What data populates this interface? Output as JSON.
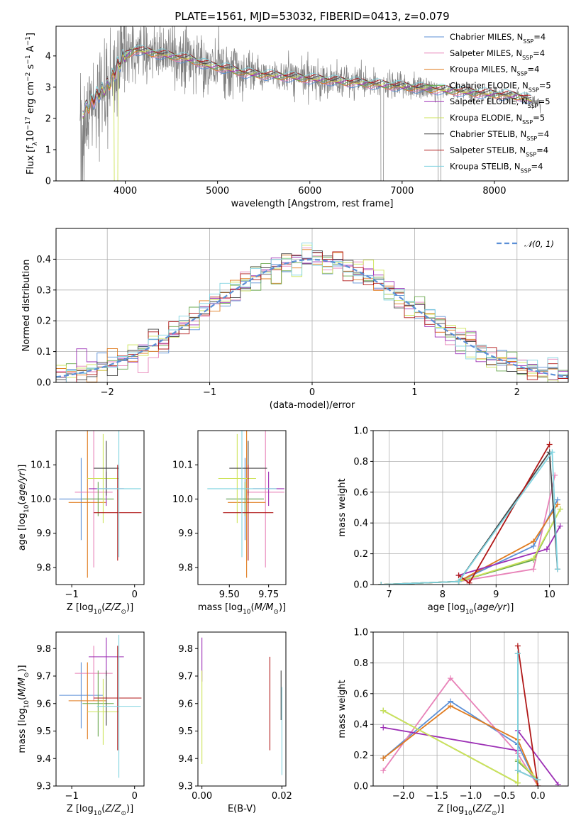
{
  "title": "PLATE=1561, MJD=53032, FIBERID=0413, z=0.079",
  "colors": {
    "Chabrier MILES": "#5b8fd6",
    "Salpeter MILES": "#e882b8",
    "Kroupa MILES": "#e07b1e",
    "Chabrier ELODIE": "#6aa84f",
    "Salpeter ELODIE": "#9c2fb5",
    "Kroupa ELODIE": "#cde35a",
    "Chabrier STELIB": "#444444",
    "Salpeter STELIB": "#b01818",
    "Kroupa STELIB": "#7fd3e0",
    "data": "#808080"
  },
  "chart_data": [
    {
      "id": "spectrum",
      "type": "line",
      "xlabel": "wavelength [Angstrom, rest frame]",
      "ylabel": "Flux [f_λ 10^-17 erg cm^-2 s^-1 A^-1]",
      "xlim": [
        3250,
        8800
      ],
      "ylim": [
        0,
        4.95
      ],
      "xticks": [
        "4000",
        "5000",
        "6000",
        "7000",
        "8000"
      ],
      "yticks": [
        "0",
        "1",
        "2",
        "3",
        "4"
      ],
      "legend": [
        "Chabrier MILES, N_SSP=4",
        "Salpeter MILES, N_SSP=4",
        "Kroupa MILES, N_SSP=4",
        "Chabrier ELODIE, N_SSP=5",
        "Salpeter ELODIE, N_SSP=5",
        "Kroupa ELODIE, N_SSP=5",
        "Chabrier STELIB, N_SSP=4",
        "Salpeter STELIB, N_SSP=4",
        "Kroupa STELIB, N_SSP=4"
      ],
      "legend_position": "right",
      "continuum_x": [
        3540,
        3650,
        3800,
        3900,
        4000,
        4100,
        4300,
        4500,
        4700,
        4900,
        5100,
        5300,
        5500,
        5700,
        5900,
        6100,
        6300,
        6500,
        6700,
        6900,
        7100,
        7300,
        7500,
        7700,
        7900,
        8100,
        8300,
        8500
      ],
      "continuum_y": [
        2.2,
        2.6,
        3.0,
        3.6,
        4.0,
        4.2,
        4.1,
        4.0,
        3.9,
        3.7,
        3.6,
        3.45,
        3.4,
        3.35,
        3.3,
        3.25,
        3.2,
        3.15,
        3.1,
        3.05,
        3.0,
        2.95,
        2.9,
        2.85,
        2.8,
        2.75,
        2.7,
        2.45
      ]
    },
    {
      "id": "residuals",
      "type": "line",
      "xlabel": "(data-model)/error",
      "ylabel": "Normed distribution",
      "xlim": [
        -2.5,
        2.5
      ],
      "ylim": [
        0,
        0.5
      ],
      "xticks": [
        "−2",
        "−1",
        "0",
        "1",
        "2"
      ],
      "yticks": [
        "0.0",
        "0.1",
        "0.2",
        "0.3",
        "0.4"
      ],
      "legend": [
        "𝒩(0, 1)"
      ],
      "legend_position": "top-right",
      "grid": true
    },
    {
      "id": "age_vs_Z",
      "type": "scatter",
      "xlabel": "Z [log10(Z/Z⊙)]",
      "ylabel": "age [log10(age/yr)]",
      "xlim": [
        -1.25,
        0.15
      ],
      "ylim": [
        9.75,
        10.2
      ],
      "xticks": [
        "−1",
        "0"
      ],
      "yticks": [
        "9.8",
        "9.9",
        "10.0",
        "10.1"
      ],
      "points": [
        {
          "model": "Chabrier MILES",
          "x": -0.85,
          "y": 10.0,
          "xerr": 0.35,
          "yerr": 0.12
        },
        {
          "model": "Salpeter MILES",
          "x": -0.65,
          "y": 10.02,
          "xerr": 0.3,
          "yerr": 0.22
        },
        {
          "model": "Kroupa MILES",
          "x": -0.75,
          "y": 9.99,
          "xerr": 0.3,
          "yerr": 0.22
        },
        {
          "model": "Chabrier ELODIE",
          "x": -0.58,
          "y": 10.0,
          "xerr": 0.25,
          "yerr": 0.05
        },
        {
          "model": "Salpeter ELODIE",
          "x": -0.45,
          "y": 10.03,
          "xerr": 0.28,
          "yerr": 0.05
        },
        {
          "model": "Kroupa ELODIE",
          "x": -0.5,
          "y": 10.06,
          "xerr": 0.25,
          "yerr": 0.13
        },
        {
          "model": "Chabrier STELIB",
          "x": -0.45,
          "y": 10.09,
          "xerr": 0.2,
          "yerr": 0.08
        },
        {
          "model": "Salpeter STELIB",
          "x": -0.27,
          "y": 9.96,
          "xerr": 0.38,
          "yerr": 0.14
        },
        {
          "model": "Kroupa STELIB",
          "x": -0.25,
          "y": 10.03,
          "xerr": 0.35,
          "yerr": 0.2
        }
      ]
    },
    {
      "id": "age_vs_mass",
      "type": "scatter",
      "xlabel": "mass [log10(M/M⊙)]",
      "ylabel": "",
      "xlim": [
        9.3,
        9.86
      ],
      "ylim": [
        9.75,
        10.2
      ],
      "xticks": [
        "9.50",
        "9.75"
      ],
      "yticks": [
        "9.8",
        "9.9",
        "10.0",
        "10.1"
      ],
      "points": [
        {
          "model": "Chabrier MILES",
          "x": 9.6,
          "y": 10.0,
          "xerr": 0.12,
          "yerr": 0.12
        },
        {
          "model": "Salpeter MILES",
          "x": 9.73,
          "y": 10.02,
          "xerr": 0.12,
          "yerr": 0.22
        },
        {
          "model": "Kroupa MILES",
          "x": 9.61,
          "y": 9.99,
          "xerr": 0.12,
          "yerr": 0.22
        },
        {
          "model": "Chabrier ELODIE",
          "x": 9.6,
          "y": 10.0,
          "xerr": 0.12,
          "yerr": 0.05
        },
        {
          "model": "Salpeter ELODIE",
          "x": 9.75,
          "y": 10.03,
          "xerr": 0.1,
          "yerr": 0.05
        },
        {
          "model": "Kroupa ELODIE",
          "x": 9.55,
          "y": 10.06,
          "xerr": 0.12,
          "yerr": 0.13
        },
        {
          "model": "Chabrier STELIB",
          "x": 9.62,
          "y": 10.09,
          "xerr": 0.12,
          "yerr": 0.08
        },
        {
          "model": "Salpeter STELIB",
          "x": 9.62,
          "y": 9.96,
          "xerr": 0.16,
          "yerr": 0.14
        },
        {
          "model": "Kroupa STELIB",
          "x": 9.58,
          "y": 10.03,
          "xerr": 0.22,
          "yerr": 0.2
        }
      ]
    },
    {
      "id": "weights_vs_age",
      "type": "line",
      "xlabel": "age [log10(age/yr)]",
      "ylabel": "mass weight",
      "xlim": [
        6.7,
        10.35
      ],
      "ylim": [
        0,
        1.0
      ],
      "xticks": [
        "7",
        "8",
        "9",
        "10"
      ],
      "yticks": [
        "0.0",
        "0.2",
        "0.4",
        "0.6",
        "0.8",
        "1.0"
      ],
      "grid": true,
      "series": [
        {
          "model": "Chabrier MILES",
          "x": [
            6.85,
            8.3,
            9.7,
            10.15
          ],
          "y": [
            0.0,
            0.02,
            0.25,
            0.55
          ]
        },
        {
          "model": "Salpeter MILES",
          "x": [
            6.85,
            8.3,
            9.7,
            10.1
          ],
          "y": [
            0.0,
            0.02,
            0.1,
            0.71
          ]
        },
        {
          "model": "Kroupa MILES",
          "x": [
            6.85,
            8.3,
            9.7,
            10.15
          ],
          "y": [
            0.0,
            0.02,
            0.28,
            0.52
          ]
        },
        {
          "model": "Chabrier ELODIE",
          "x": [
            6.85,
            8.3,
            9.7,
            10.2
          ],
          "y": [
            0.0,
            0.02,
            0.16,
            0.49
          ]
        },
        {
          "model": "Salpeter ELODIE",
          "x": [
            8.3,
            9.95,
            10.2
          ],
          "y": [
            0.06,
            0.23,
            0.38
          ]
        },
        {
          "model": "Kroupa ELODIE",
          "x": [
            6.85,
            8.3,
            9.7,
            10.2
          ],
          "y": [
            0.0,
            0.02,
            0.17,
            0.49
          ]
        },
        {
          "model": "Chabrier STELIB",
          "x": [
            6.85,
            8.3,
            10.0,
            10.15
          ],
          "y": [
            0.0,
            0.02,
            0.86,
            0.1
          ]
        },
        {
          "model": "Salpeter STELIB",
          "x": [
            8.3,
            8.5,
            10.0
          ],
          "y": [
            0.06,
            0.01,
            0.91
          ]
        },
        {
          "model": "Kroupa STELIB",
          "x": [
            6.85,
            8.3,
            10.05,
            10.15
          ],
          "y": [
            0.0,
            0.02,
            0.86,
            0.1
          ]
        }
      ]
    },
    {
      "id": "mass_vs_Z",
      "type": "scatter",
      "xlabel": "Z [log10(Z/Z⊙)]",
      "ylabel": "mass [log10(M/M⊙)]",
      "xlim": [
        -1.25,
        0.15
      ],
      "ylim": [
        9.3,
        9.86
      ],
      "xticks": [
        "−1",
        "0"
      ],
      "yticks": [
        "9.3",
        "9.4",
        "9.5",
        "9.6",
        "9.7",
        "9.8"
      ],
      "points": [
        {
          "model": "Chabrier MILES",
          "x": -0.85,
          "y": 9.63,
          "xerr": 0.35,
          "yerr": 0.12
        },
        {
          "model": "Salpeter MILES",
          "x": -0.65,
          "y": 9.71,
          "xerr": 0.3,
          "yerr": 0.1
        },
        {
          "model": "Kroupa MILES",
          "x": -0.75,
          "y": 9.61,
          "xerr": 0.3,
          "yerr": 0.14
        },
        {
          "model": "Chabrier ELODIE",
          "x": -0.58,
          "y": 9.6,
          "xerr": 0.25,
          "yerr": 0.12
        },
        {
          "model": "Salpeter ELODIE",
          "x": -0.45,
          "y": 9.77,
          "xerr": 0.28,
          "yerr": 0.07
        },
        {
          "model": "Kroupa ELODIE",
          "x": -0.5,
          "y": 9.57,
          "xerr": 0.25,
          "yerr": 0.12
        },
        {
          "model": "Chabrier STELIB",
          "x": -0.45,
          "y": 9.62,
          "xerr": 0.2,
          "yerr": 0.1
        },
        {
          "model": "Salpeter STELIB",
          "x": -0.27,
          "y": 9.62,
          "xerr": 0.38,
          "yerr": 0.19
        },
        {
          "model": "Kroupa STELIB",
          "x": -0.25,
          "y": 9.59,
          "xerr": 0.35,
          "yerr": 0.26
        }
      ]
    },
    {
      "id": "mass_vs_EBV",
      "type": "scatter",
      "xlabel": "E(B-V)",
      "ylabel": "",
      "xlim": [
        -0.001,
        0.021
      ],
      "ylim": [
        9.3,
        9.86
      ],
      "xticks": [
        "0.00",
        "0.02"
      ],
      "yticks": [
        "9.3",
        "9.4",
        "9.5",
        "9.6",
        "9.7",
        "9.8"
      ],
      "points": [
        {
          "model": "Salpeter ELODIE",
          "x": 0.0,
          "y": 9.76,
          "yerr": 0.08
        },
        {
          "model": "Kroupa ELODIE",
          "x": 0.0,
          "y": 9.55,
          "yerr": 0.17
        },
        {
          "model": "Salpeter STELIB",
          "x": 0.017,
          "y": 9.6,
          "yerr": 0.17
        },
        {
          "model": "Chabrier STELIB",
          "x": 0.0198,
          "y": 9.63,
          "yerr": 0.09
        },
        {
          "model": "Kroupa STELIB",
          "x": 0.02,
          "y": 9.5,
          "yerr": 0.16
        }
      ]
    },
    {
      "id": "weights_vs_Z",
      "type": "line",
      "xlabel": "Z [log10(Z/Z⊙)]",
      "ylabel": "mass weight",
      "xlim": [
        -2.45,
        0.45
      ],
      "ylim": [
        0,
        1.0
      ],
      "xticks": [
        "−2.0",
        "−1.5",
        "−1.0",
        "−0.5",
        "0.0"
      ],
      "yticks": [
        "0.0",
        "0.2",
        "0.4",
        "0.6",
        "0.8",
        "1.0"
      ],
      "grid": true,
      "series": [
        {
          "model": "Chabrier MILES",
          "x": [
            -2.3,
            -1.3,
            -0.3,
            0.0
          ],
          "y": [
            0.18,
            0.55,
            0.27,
            0.0
          ]
        },
        {
          "model": "Salpeter MILES",
          "x": [
            -2.3,
            -1.3,
            -0.3,
            0.0
          ],
          "y": [
            0.1,
            0.7,
            0.21,
            0.0
          ]
        },
        {
          "model": "Kroupa MILES",
          "x": [
            -2.3,
            -1.3,
            -0.3,
            0.0
          ],
          "y": [
            0.18,
            0.52,
            0.3,
            0.0
          ]
        },
        {
          "model": "Chabrier ELODIE",
          "x": [
            -2.3,
            -0.3,
            -0.3,
            0.0
          ],
          "y": [
            0.49,
            0.02,
            0.16,
            0.04
          ]
        },
        {
          "model": "Salpeter ELODIE",
          "x": [
            -2.3,
            -0.3,
            -0.3,
            0.3
          ],
          "y": [
            0.38,
            0.23,
            0.36,
            0.01
          ]
        },
        {
          "model": "Kroupa ELODIE",
          "x": [
            -2.3,
            -0.3,
            -0.3,
            0.0
          ],
          "y": [
            0.49,
            0.02,
            0.17,
            0.04
          ]
        },
        {
          "model": "Chabrier STELIB",
          "x": [
            -0.3,
            -0.3,
            0.0
          ],
          "y": [
            0.86,
            0.1,
            0.04
          ]
        },
        {
          "model": "Salpeter STELIB",
          "x": [
            -0.3,
            0.0
          ],
          "y": [
            0.91,
            0.0
          ]
        },
        {
          "model": "Kroupa STELIB",
          "x": [
            -0.3,
            -0.3,
            0.0
          ],
          "y": [
            0.86,
            0.1,
            0.04
          ]
        }
      ]
    }
  ]
}
